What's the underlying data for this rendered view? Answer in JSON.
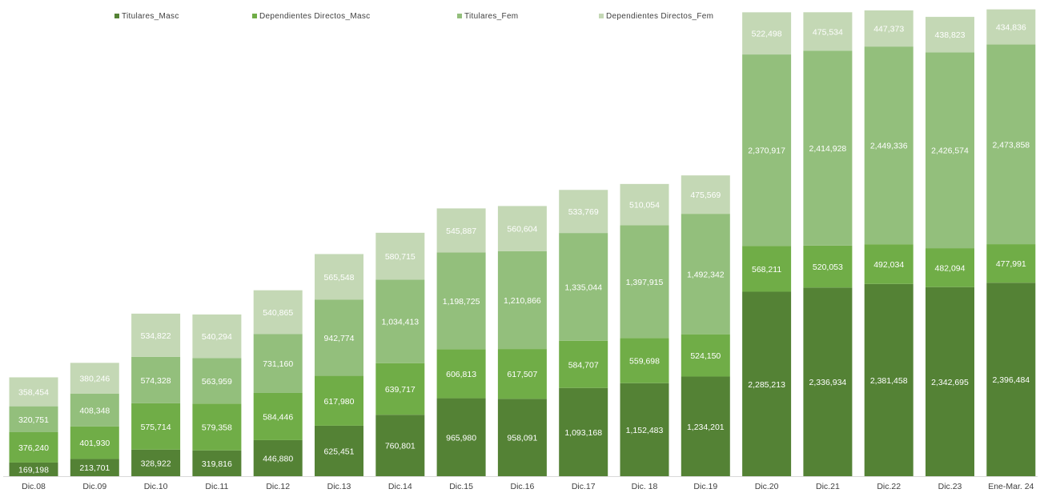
{
  "chart_data": {
    "type": "bar",
    "stacked": true,
    "title": "",
    "xlabel": "",
    "ylabel": "",
    "ylim": [
      0,
      5800000
    ],
    "grid": false,
    "legend_position": "top",
    "show_y_axis": false,
    "categories": [
      "Dic.08",
      "Dic.09",
      "Dic.10",
      "Dic.11",
      "Dic.12",
      "Dic.13",
      "Dic.14",
      "Dic.15",
      "Dic.16",
      "Dic.17",
      "Dic. 18",
      "Dic.19",
      "Dic.20",
      "Dic.21",
      "Dic.22",
      "Dic.23",
      "Ene-Mar. 24"
    ],
    "series": [
      {
        "name": "Titulares_Masc",
        "color": "#548235",
        "values": [
          169198,
          213701,
          328922,
          319816,
          446880,
          625451,
          760801,
          965980,
          958091,
          1093168,
          1152483,
          1234201,
          2285213,
          2336934,
          2381458,
          2342695,
          2396484
        ],
        "labels": [
          "169,198",
          "213,701",
          "328,922",
          "319,816",
          "446,880",
          "625,451",
          "760,801",
          "965,980",
          "958,091",
          "1,093,168",
          "1,152,483",
          "1,234,201",
          "2,285,213",
          "2,336,934",
          "2,381,458",
          "2,342,695",
          "2,396,484"
        ]
      },
      {
        "name": "Dependientes Directos_Masc",
        "color": "#70AD47",
        "values": [
          376240,
          401930,
          575714,
          579358,
          584446,
          617980,
          639717,
          606813,
          617507,
          584707,
          559698,
          524150,
          568211,
          520053,
          492034,
          482094,
          477991
        ],
        "labels": [
          "376,240",
          "401,930",
          "575,714",
          "579,358",
          "584,446",
          "617,980",
          "639,717",
          "606,813",
          "617,507",
          "584,707",
          "559,698",
          "524,150",
          "568,211",
          "520,053",
          "492,034",
          "482,094",
          "477,991"
        ]
      },
      {
        "name": "Titulares_Fem",
        "color": "#93BF7C",
        "values": [
          320751,
          408348,
          574328,
          563959,
          731160,
          942774,
          1034413,
          1198725,
          1210866,
          1335044,
          1397915,
          1492342,
          2370917,
          2414928,
          2449336,
          2426574,
          2473858
        ],
        "labels": [
          "320,751",
          "408,348",
          "574,328",
          "563,959",
          "731,160",
          "942,774",
          "1,034,413",
          "1,198,725",
          "1,210,866",
          "1,335,044",
          "1,397,915",
          "1,492,342",
          "2,370,917",
          "2,414,928",
          "2,449,336",
          "2,426,574",
          "2,473,858"
        ]
      },
      {
        "name": "Dependientes Directos_Fem",
        "color": "#C4D8B5",
        "values": [
          358454,
          380246,
          534822,
          540294,
          540865,
          565548,
          580715,
          545887,
          560604,
          533769,
          510054,
          475569,
          522498,
          475534,
          447373,
          438823,
          434836
        ],
        "labels": [
          "358,454",
          "380,246",
          "534,822",
          "540,294",
          "540,865",
          "565,548",
          "580,715",
          "545,887",
          "560,604",
          "533,769",
          "510,054",
          "475,569",
          "522,498",
          "475,534",
          "447,373",
          "438,823",
          "434,836"
        ]
      }
    ]
  }
}
